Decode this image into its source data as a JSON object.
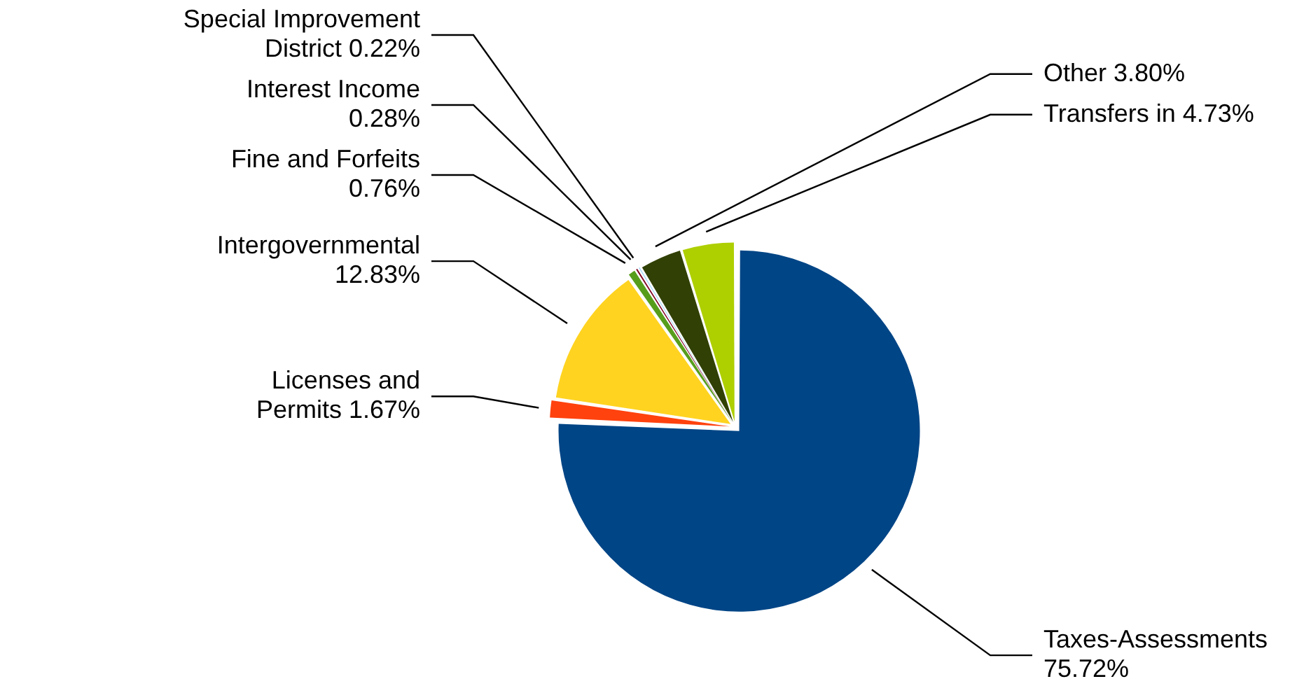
{
  "chart_data": {
    "type": "pie",
    "categories": [
      "Taxes-Assessments",
      "Licenses and Permits",
      "Intergovernmental",
      "Fine and Forfeits",
      "Interest Income",
      "Special Improvement District",
      "Other",
      "Transfers in"
    ],
    "values": [
      75.72,
      1.67,
      12.83,
      0.76,
      0.28,
      0.22,
      3.8,
      4.73
    ],
    "value_labels": [
      "75.72%",
      "1.67%",
      "12.83%",
      "0.76%",
      "0.28%",
      "0.22%",
      "3.80%",
      "4.73%"
    ],
    "colors": [
      "#004586",
      "#ff420e",
      "#ffd320",
      "#579d1c",
      "#7e0021",
      "#83caff",
      "#314004",
      "#aecf00"
    ],
    "legend": false
  }
}
